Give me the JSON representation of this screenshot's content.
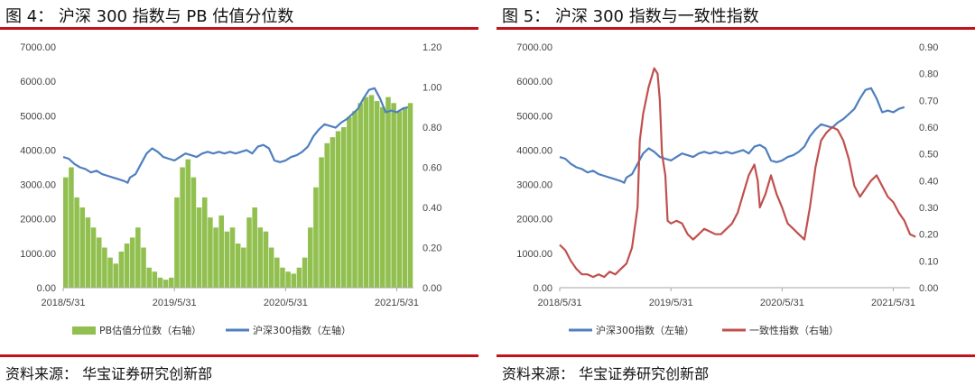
{
  "left": {
    "title": "图 4：  沪深 300 指数与 PB 估值分位数",
    "source": "资料来源：  华宝证券研究创新部",
    "chart_data": {
      "type": "bar+line",
      "y_left": {
        "ticks": [
          "7000.00",
          "6000.00",
          "5000.00",
          "4000.00",
          "3000.00",
          "2000.00",
          "1000.00",
          "0.00"
        ],
        "lim": [
          0,
          7000
        ]
      },
      "y_right": {
        "ticks": [
          "1.20",
          "1.00",
          "0.80",
          "0.60",
          "0.40",
          "0.20",
          "0.00"
        ],
        "lim": [
          0,
          1.2
        ]
      },
      "x_ticks": [
        "2018/5/31",
        "2019/5/31",
        "2020/5/31",
        "2021/5/31"
      ],
      "series": [
        {
          "name": "PB估值分位数（右轴）",
          "type": "bar",
          "axis": "right",
          "color": "#92c050",
          "points": [
            [
              0,
              0.55
            ],
            [
              0.05,
              0.6
            ],
            [
              0.1,
              0.45
            ],
            [
              0.15,
              0.4
            ],
            [
              0.2,
              0.35
            ],
            [
              0.25,
              0.3
            ],
            [
              0.3,
              0.25
            ],
            [
              0.35,
              0.2
            ],
            [
              0.4,
              0.15
            ],
            [
              0.45,
              0.12
            ],
            [
              0.5,
              0.18
            ],
            [
              0.55,
              0.22
            ],
            [
              0.6,
              0.25
            ],
            [
              0.65,
              0.3
            ],
            [
              0.7,
              0.2
            ],
            [
              0.75,
              0.1
            ],
            [
              0.8,
              0.08
            ],
            [
              0.85,
              0.05
            ],
            [
              0.9,
              0.04
            ],
            [
              0.95,
              0.05
            ],
            [
              1.0,
              0.45
            ],
            [
              1.05,
              0.6
            ],
            [
              1.1,
              0.64
            ],
            [
              1.15,
              0.55
            ],
            [
              1.2,
              0.4
            ],
            [
              1.25,
              0.45
            ],
            [
              1.3,
              0.35
            ],
            [
              1.35,
              0.3
            ],
            [
              1.4,
              0.36
            ],
            [
              1.45,
              0.28
            ],
            [
              1.5,
              0.3
            ],
            [
              1.55,
              0.22
            ],
            [
              1.6,
              0.2
            ],
            [
              1.65,
              0.35
            ],
            [
              1.7,
              0.4
            ],
            [
              1.75,
              0.3
            ],
            [
              1.8,
              0.28
            ],
            [
              1.85,
              0.2
            ],
            [
              1.9,
              0.15
            ],
            [
              1.95,
              0.1
            ],
            [
              2.0,
              0.08
            ],
            [
              2.05,
              0.07
            ],
            [
              2.1,
              0.1
            ],
            [
              2.15,
              0.15
            ],
            [
              2.2,
              0.3
            ],
            [
              2.25,
              0.5
            ],
            [
              2.3,
              0.65
            ],
            [
              2.35,
              0.72
            ],
            [
              2.4,
              0.75
            ],
            [
              2.45,
              0.78
            ],
            [
              2.5,
              0.8
            ],
            [
              2.55,
              0.85
            ],
            [
              2.6,
              0.88
            ],
            [
              2.65,
              0.92
            ],
            [
              2.7,
              0.95
            ],
            [
              2.75,
              0.96
            ],
            [
              2.8,
              0.93
            ],
            [
              2.85,
              0.9
            ],
            [
              2.9,
              0.95
            ],
            [
              2.95,
              0.92
            ],
            [
              3.0,
              0.88
            ],
            [
              3.05,
              0.9
            ],
            [
              3.1,
              0.92
            ]
          ]
        },
        {
          "name": "沪深300指数（左轴）",
          "type": "line",
          "axis": "left",
          "color": "#4f7fbf",
          "points": [
            [
              0,
              3800
            ],
            [
              0.05,
              3750
            ],
            [
              0.1,
              3600
            ],
            [
              0.15,
              3500
            ],
            [
              0.2,
              3450
            ],
            [
              0.25,
              3350
            ],
            [
              0.3,
              3400
            ],
            [
              0.35,
              3300
            ],
            [
              0.4,
              3250
            ],
            [
              0.45,
              3200
            ],
            [
              0.5,
              3150
            ],
            [
              0.55,
              3100
            ],
            [
              0.58,
              3050
            ],
            [
              0.6,
              3200
            ],
            [
              0.65,
              3300
            ],
            [
              0.7,
              3600
            ],
            [
              0.75,
              3900
            ],
            [
              0.8,
              4050
            ],
            [
              0.85,
              3950
            ],
            [
              0.9,
              3800
            ],
            [
              0.95,
              3750
            ],
            [
              1.0,
              3700
            ],
            [
              1.05,
              3800
            ],
            [
              1.1,
              3900
            ],
            [
              1.15,
              3850
            ],
            [
              1.2,
              3800
            ],
            [
              1.25,
              3900
            ],
            [
              1.3,
              3950
            ],
            [
              1.35,
              3900
            ],
            [
              1.4,
              3950
            ],
            [
              1.45,
              3900
            ],
            [
              1.5,
              3950
            ],
            [
              1.55,
              3900
            ],
            [
              1.6,
              3950
            ],
            [
              1.65,
              4000
            ],
            [
              1.7,
              3900
            ],
            [
              1.75,
              4100
            ],
            [
              1.8,
              4150
            ],
            [
              1.85,
              4050
            ],
            [
              1.9,
              3700
            ],
            [
              1.95,
              3650
            ],
            [
              2.0,
              3700
            ],
            [
              2.05,
              3800
            ],
            [
              2.1,
              3850
            ],
            [
              2.15,
              3950
            ],
            [
              2.2,
              4100
            ],
            [
              2.25,
              4400
            ],
            [
              2.3,
              4600
            ],
            [
              2.35,
              4750
            ],
            [
              2.4,
              4700
            ],
            [
              2.45,
              4650
            ],
            [
              2.5,
              4800
            ],
            [
              2.55,
              4900
            ],
            [
              2.6,
              5050
            ],
            [
              2.65,
              5200
            ],
            [
              2.7,
              5500
            ],
            [
              2.75,
              5750
            ],
            [
              2.8,
              5800
            ],
            [
              2.85,
              5500
            ],
            [
              2.9,
              5100
            ],
            [
              2.95,
              5150
            ],
            [
              3.0,
              5100
            ],
            [
              3.05,
              5200
            ],
            [
              3.1,
              5250
            ]
          ]
        }
      ],
      "legend_placement": "bottom"
    }
  },
  "right": {
    "title": "图 5：  沪深 300 指数与一致性指数",
    "source": "资料来源：  华宝证券研究创新部",
    "chart_data": {
      "type": "line",
      "y_left": {
        "ticks": [
          "7000.00",
          "6000.00",
          "5000.00",
          "4000.00",
          "3000.00",
          "2000.00",
          "1000.00",
          "0.00"
        ],
        "lim": [
          0,
          7000
        ]
      },
      "y_right": {
        "ticks": [
          "0.90",
          "0.80",
          "0.70",
          "0.60",
          "0.50",
          "0.40",
          "0.30",
          "0.20",
          "0.10",
          "0.00"
        ],
        "lim": [
          0,
          0.9
        ]
      },
      "x_ticks": [
        "2018/5/31",
        "2019/5/31",
        "2020/5/31",
        "2021/5/31"
      ],
      "series": [
        {
          "name": "沪深300指数（左轴）",
          "type": "line",
          "axis": "left",
          "color": "#4f7fbf",
          "points": [
            [
              0,
              3800
            ],
            [
              0.05,
              3750
            ],
            [
              0.1,
              3600
            ],
            [
              0.15,
              3500
            ],
            [
              0.2,
              3450
            ],
            [
              0.25,
              3350
            ],
            [
              0.3,
              3400
            ],
            [
              0.35,
              3300
            ],
            [
              0.4,
              3250
            ],
            [
              0.45,
              3200
            ],
            [
              0.5,
              3150
            ],
            [
              0.55,
              3100
            ],
            [
              0.58,
              3050
            ],
            [
              0.6,
              3200
            ],
            [
              0.65,
              3300
            ],
            [
              0.7,
              3600
            ],
            [
              0.75,
              3900
            ],
            [
              0.8,
              4050
            ],
            [
              0.85,
              3950
            ],
            [
              0.9,
              3800
            ],
            [
              0.95,
              3750
            ],
            [
              1.0,
              3700
            ],
            [
              1.05,
              3800
            ],
            [
              1.1,
              3900
            ],
            [
              1.15,
              3850
            ],
            [
              1.2,
              3800
            ],
            [
              1.25,
              3900
            ],
            [
              1.3,
              3950
            ],
            [
              1.35,
              3900
            ],
            [
              1.4,
              3950
            ],
            [
              1.45,
              3900
            ],
            [
              1.5,
              3950
            ],
            [
              1.55,
              3900
            ],
            [
              1.6,
              3950
            ],
            [
              1.65,
              4000
            ],
            [
              1.7,
              3900
            ],
            [
              1.75,
              4100
            ],
            [
              1.8,
              4150
            ],
            [
              1.85,
              4050
            ],
            [
              1.9,
              3700
            ],
            [
              1.95,
              3650
            ],
            [
              2.0,
              3700
            ],
            [
              2.05,
              3800
            ],
            [
              2.1,
              3850
            ],
            [
              2.15,
              3950
            ],
            [
              2.2,
              4100
            ],
            [
              2.25,
              4400
            ],
            [
              2.3,
              4600
            ],
            [
              2.35,
              4750
            ],
            [
              2.4,
              4700
            ],
            [
              2.45,
              4650
            ],
            [
              2.5,
              4800
            ],
            [
              2.55,
              4900
            ],
            [
              2.6,
              5050
            ],
            [
              2.65,
              5200
            ],
            [
              2.7,
              5500
            ],
            [
              2.75,
              5750
            ],
            [
              2.8,
              5800
            ],
            [
              2.85,
              5500
            ],
            [
              2.9,
              5100
            ],
            [
              2.95,
              5150
            ],
            [
              3.0,
              5100
            ],
            [
              3.05,
              5200
            ],
            [
              3.1,
              5250
            ]
          ]
        },
        {
          "name": "一致性指数（右轴）",
          "type": "line",
          "axis": "right",
          "color": "#c0504d",
          "points": [
            [
              0,
              0.16
            ],
            [
              0.05,
              0.14
            ],
            [
              0.1,
              0.1
            ],
            [
              0.15,
              0.07
            ],
            [
              0.2,
              0.05
            ],
            [
              0.25,
              0.05
            ],
            [
              0.3,
              0.04
            ],
            [
              0.35,
              0.05
            ],
            [
              0.4,
              0.04
            ],
            [
              0.45,
              0.06
            ],
            [
              0.5,
              0.05
            ],
            [
              0.55,
              0.07
            ],
            [
              0.6,
              0.09
            ],
            [
              0.65,
              0.15
            ],
            [
              0.7,
              0.3
            ],
            [
              0.72,
              0.55
            ],
            [
              0.75,
              0.65
            ],
            [
              0.8,
              0.75
            ],
            [
              0.85,
              0.82
            ],
            [
              0.88,
              0.8
            ],
            [
              0.9,
              0.7
            ],
            [
              0.92,
              0.5
            ],
            [
              0.95,
              0.42
            ],
            [
              0.97,
              0.25
            ],
            [
              1.0,
              0.24
            ],
            [
              1.05,
              0.25
            ],
            [
              1.1,
              0.24
            ],
            [
              1.15,
              0.2
            ],
            [
              1.2,
              0.18
            ],
            [
              1.25,
              0.2
            ],
            [
              1.3,
              0.22
            ],
            [
              1.35,
              0.21
            ],
            [
              1.4,
              0.2
            ],
            [
              1.45,
              0.2
            ],
            [
              1.5,
              0.22
            ],
            [
              1.55,
              0.24
            ],
            [
              1.6,
              0.28
            ],
            [
              1.65,
              0.35
            ],
            [
              1.7,
              0.42
            ],
            [
              1.75,
              0.46
            ],
            [
              1.78,
              0.4
            ],
            [
              1.8,
              0.3
            ],
            [
              1.85,
              0.35
            ],
            [
              1.9,
              0.42
            ],
            [
              1.95,
              0.35
            ],
            [
              2.0,
              0.3
            ],
            [
              2.05,
              0.24
            ],
            [
              2.1,
              0.22
            ],
            [
              2.15,
              0.2
            ],
            [
              2.2,
              0.18
            ],
            [
              2.25,
              0.3
            ],
            [
              2.3,
              0.45
            ],
            [
              2.35,
              0.55
            ],
            [
              2.4,
              0.58
            ],
            [
              2.45,
              0.6
            ],
            [
              2.5,
              0.59
            ],
            [
              2.55,
              0.55
            ],
            [
              2.6,
              0.48
            ],
            [
              2.65,
              0.38
            ],
            [
              2.7,
              0.34
            ],
            [
              2.75,
              0.37
            ],
            [
              2.8,
              0.4
            ],
            [
              2.85,
              0.42
            ],
            [
              2.9,
              0.38
            ],
            [
              2.95,
              0.34
            ],
            [
              3.0,
              0.32
            ],
            [
              3.05,
              0.28
            ],
            [
              3.1,
              0.25
            ],
            [
              3.15,
              0.2
            ],
            [
              3.2,
              0.19
            ]
          ]
        }
      ],
      "legend_placement": "bottom"
    }
  }
}
